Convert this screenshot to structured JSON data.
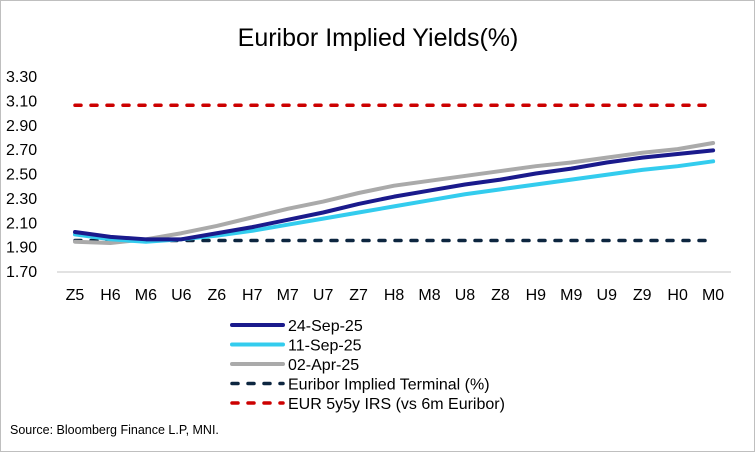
{
  "chart_data": {
    "type": "line",
    "title": "Euribor Implied Yields(%)",
    "xlabel": "",
    "ylabel": "",
    "ylim": [
      1.7,
      3.3
    ],
    "yticks": [
      "3.30",
      "3.10",
      "2.90",
      "2.70",
      "2.50",
      "2.30",
      "2.10",
      "1.90",
      "1.70"
    ],
    "categories": [
      "Z5",
      "H6",
      "M6",
      "U6",
      "Z6",
      "H7",
      "M7",
      "U7",
      "Z7",
      "H8",
      "M8",
      "U8",
      "Z8",
      "H9",
      "M9",
      "U9",
      "Z9",
      "H0",
      "M0"
    ],
    "series": [
      {
        "name": "24-Sep-25",
        "color": "#1a1a8c",
        "dash": false,
        "values": [
          2.02,
          1.98,
          1.96,
          1.96,
          2.01,
          2.06,
          2.12,
          2.18,
          2.25,
          2.31,
          2.36,
          2.41,
          2.45,
          2.5,
          2.54,
          2.59,
          2.63,
          2.66,
          2.69
        ]
      },
      {
        "name": "11-Sep-25",
        "color": "#33ccee",
        "dash": false,
        "values": [
          2.0,
          1.96,
          1.94,
          1.96,
          1.99,
          2.03,
          2.08,
          2.13,
          2.18,
          2.23,
          2.28,
          2.33,
          2.37,
          2.41,
          2.45,
          2.49,
          2.53,
          2.56,
          2.6
        ]
      },
      {
        "name": "02-Apr-25",
        "color": "#aaaaaa",
        "dash": false,
        "values": [
          1.94,
          1.93,
          1.96,
          2.01,
          2.07,
          2.14,
          2.21,
          2.27,
          2.34,
          2.4,
          2.44,
          2.48,
          2.52,
          2.56,
          2.59,
          2.63,
          2.67,
          2.7,
          2.75
        ]
      },
      {
        "name": "Euribor Implied Terminal (%)",
        "color": "#0d2640",
        "dash": true,
        "values": [
          1.95,
          1.95,
          1.95,
          1.95,
          1.95,
          1.95,
          1.95,
          1.95,
          1.95,
          1.95,
          1.95,
          1.95,
          1.95,
          1.95,
          1.95,
          1.95,
          1.95,
          1.95,
          1.95
        ]
      },
      {
        "name": "EUR 5y5y IRS (vs 6m Euribor)",
        "color": "#cc0000",
        "dash": true,
        "values": [
          3.06,
          3.06,
          3.06,
          3.06,
          3.06,
          3.06,
          3.06,
          3.06,
          3.06,
          3.06,
          3.06,
          3.06,
          3.06,
          3.06,
          3.06,
          3.06,
          3.06,
          3.06,
          3.06
        ]
      }
    ],
    "grid": false,
    "legend_position": "bottom"
  },
  "source": "Source: Bloomberg Finance L.P, MNI."
}
